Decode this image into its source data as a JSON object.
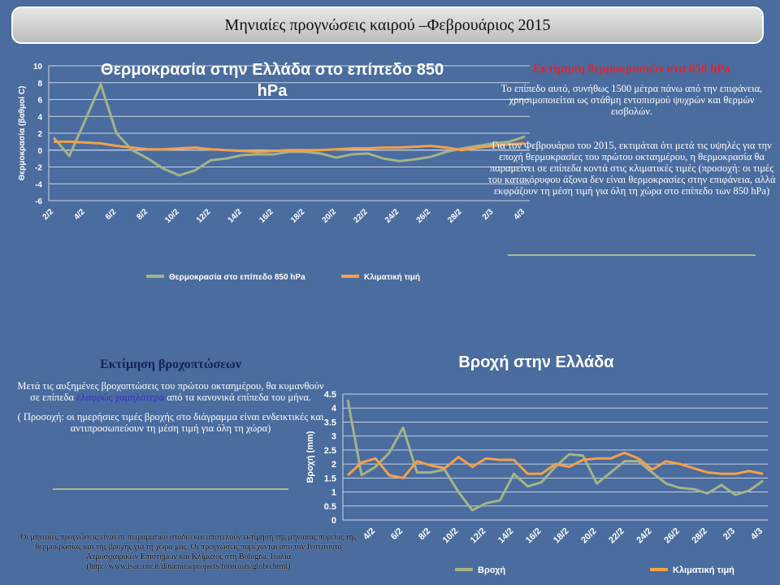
{
  "header": {
    "title": "Μηνιαίες προγνώσεις καιρού –Φεβρουάριος 2015"
  },
  "temperature_text": {
    "title": "Εκτίμηση θερμοκρασιών στα 850 hPa",
    "paragraph1": "Το επίπεδο αυτό, συνήθως 1500 μέτρα πάνω από την επιφάνεια, χρησιμοποιείται ως στάθμη  εντοπισμού ψυχρών και θερμών εισβολών.",
    "paragraph2": "Για τον Φεβρουάριο του 2015, εκτιμάται ότι μετά τις υψηλές για την εποχή θερμοκρασίες του πρώτου οκταημέρου, η θερμοκρασία θα παραμείνει σε επίπεδα κοντά στις κλιματικές τιμές (προσοχή: οι τιμές του  κατακόρυφου άξονα δεν είναι θερμοκρασίες στην επιφάνεια, αλλά εκφράζουν τη μέση τιμή για όλη τη χώρα στο επίπεδο των 850 hPa)"
  },
  "rain_text": {
    "title": "Εκτίμηση βροχοπτώσεων",
    "paragraph1": [
      "Μετά  τις αυξημένες βροχοπτώσεις του πρώτου οκταημέρου, θα κυμανθούν σε επίπεδα ",
      "ελαφρώς χαμηλότερα",
      " από τα κανονικά επίπεδα του μήνα."
    ],
    "paragraph2": "( Προσοχή: οι ημερήσιες τιμές βροχής στο διάγραμμα είναι ενδεικτικές και  αντιπροσωπεύουν τη μέση τιμή για όλη τη χώρα)"
  },
  "footer": "Οι μηνιαίες προγνώσεις  είναι σε πειραματικό στάδιο και αποτελούν  εκτίμηση της μηνιαίας πορείας της θερμοκρασίας και της βροχής για τη χώρα μας. Οι προγνώσεις παρέχονται απο τον Ινστιτούτο Ατμοσφαιρικών Επιστημών και Κλίματος στη Bologna, Ιταλία (http://www.isac.cnr.it/dinamica/projects/forecasts/globo.html)",
  "chart_data": [
    {
      "type": "line",
      "title": "Θερμοκρασία στην Ελλάδα στο επίπεδο 850 hPa",
      "y_label": "Θερμοκρασία  (βαθμοί C)",
      "categories": [
        "2/2",
        null,
        "4/2",
        null,
        "6/2",
        null,
        "8/2",
        null,
        "10/2",
        null,
        "12/2",
        null,
        "14/2",
        null,
        "16/2",
        null,
        "18/2",
        null,
        "20/2",
        null,
        "22/2",
        null,
        "24/2",
        null,
        "26/2",
        null,
        "28/2",
        null,
        "2/3",
        null,
        "4/3"
      ],
      "series": [
        {
          "name": "Θερμοκρασία  στο επίπεδο 850 hPa",
          "color": "#a3b489",
          "values": [
            1.5,
            -0.7,
            3.5,
            7.8,
            2,
            0,
            -1,
            -2.2,
            -3,
            -2.4,
            -1.2,
            -1,
            -0.6,
            -0.5,
            -0.5,
            -0.2,
            -0.2,
            -0.4,
            -0.9,
            -0.5,
            -0.4,
            -1,
            -1.3,
            -1.1,
            -0.8,
            -0.2,
            0.2,
            0.5,
            0.8,
            1,
            1.6
          ]
        },
        {
          "name": "Κλιματική  τιμή",
          "color": "#f5a04a",
          "values": [
            1.0,
            1.0,
            0.9,
            0.8,
            0.5,
            0.3,
            0.1,
            0.1,
            0.2,
            0.3,
            0.1,
            0,
            -0.1,
            -0.2,
            -0.1,
            0,
            0,
            0,
            0.1,
            0.2,
            0.2,
            0.3,
            0.3,
            0.4,
            0.5,
            0.3,
            0,
            0.3,
            0.5,
            0.7,
            0.8
          ]
        }
      ],
      "ylim": [
        -6,
        10
      ],
      "yticks": [
        -6,
        -4,
        -2,
        0,
        2,
        4,
        6,
        8,
        10
      ],
      "grid": true,
      "legend": "bottom"
    },
    {
      "type": "line",
      "title": "Βροχή στην Ελλάδα",
      "y_label": "Βροχή (mm)",
      "categories": [
        null,
        null,
        "4/2",
        null,
        "6/2",
        null,
        "8/2",
        null,
        "10/2",
        null,
        "12/2",
        null,
        "14/2",
        null,
        "16/2",
        null,
        "18/2",
        null,
        "20/2",
        null,
        "22/2",
        null,
        "24/2",
        null,
        "26/2",
        null,
        "28/2",
        null,
        "2/3",
        null,
        "4/3"
      ],
      "series": [
        {
          "name": "Βροχή",
          "color": "#a3b489",
          "values": [
            4.3,
            1.6,
            1.9,
            2.4,
            3.3,
            1.7,
            1.7,
            1.8,
            1.0,
            0.35,
            0.6,
            0.7,
            1.65,
            1.2,
            1.35,
            1.9,
            2.35,
            2.3,
            1.3,
            1.7,
            2.1,
            2.1,
            1.7,
            1.3,
            1.15,
            1.1,
            0.95,
            1.25,
            0.9,
            1.05,
            1.4
          ]
        },
        {
          "name": "Κλιματική  τιμή",
          "color": "#f5a04a",
          "values": [
            1.6,
            2.05,
            2.2,
            1.6,
            1.5,
            2.1,
            1.95,
            1.85,
            2.25,
            1.9,
            2.2,
            2.15,
            2.15,
            1.65,
            1.65,
            2.0,
            1.9,
            2.15,
            2.2,
            2.2,
            2.4,
            2.2,
            1.8,
            2.1,
            2.0,
            1.85,
            1.7,
            1.65,
            1.65,
            1.75,
            1.65
          ]
        }
      ],
      "ylim": [
        0,
        4.5
      ],
      "yticks": [
        0,
        0.5,
        1,
        1.5,
        2,
        2.5,
        3,
        3.5,
        4,
        4.5
      ],
      "grid": true,
      "legend": "bottom"
    }
  ]
}
